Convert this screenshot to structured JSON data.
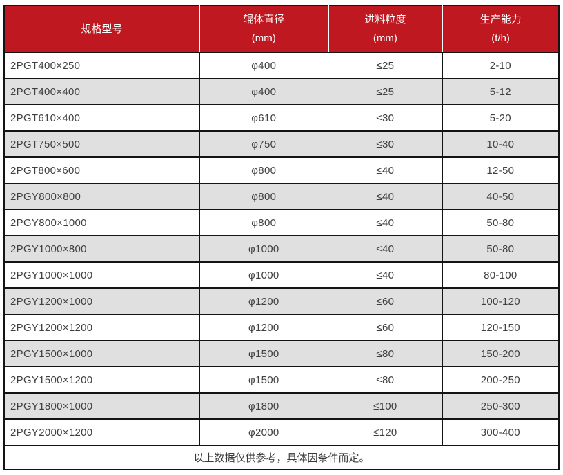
{
  "table": {
    "columns": [
      {
        "label": "规格型号",
        "unit": ""
      },
      {
        "label": "辊体直径",
        "unit": "(mm)"
      },
      {
        "label": "进料粒度",
        "unit": "(mm)"
      },
      {
        "label": "生产能力",
        "unit": "(t/h)"
      }
    ],
    "rows": [
      [
        "2PGT400×250",
        "φ400",
        "≤25",
        "2-10"
      ],
      [
        "2PGT400×400",
        "φ400",
        "≤25",
        "5-12"
      ],
      [
        "2PGT610×400",
        "φ610",
        "≤30",
        "5-20"
      ],
      [
        "2PGT750×500",
        "φ750",
        "≤30",
        "10-40"
      ],
      [
        "2PGT800×600",
        "φ800",
        "≤40",
        "12-50"
      ],
      [
        "2PGY800×800",
        "φ800",
        "≤40",
        "40-50"
      ],
      [
        "2PGY800×1000",
        "φ800",
        "≤40",
        "50-80"
      ],
      [
        "2PGY1000×800",
        "φ1000",
        "≤40",
        "50-80"
      ],
      [
        "2PGY1000×1000",
        "φ1000",
        "≤40",
        "80-100"
      ],
      [
        "2PGY1200×1000",
        "φ1200",
        "≤60",
        "100-120"
      ],
      [
        "2PGY1200×1200",
        "φ1200",
        "≤60",
        "120-150"
      ],
      [
        "2PGY1500×1000",
        "φ1500",
        "≤80",
        "150-200"
      ],
      [
        "2PGY1500×1200",
        "φ1500",
        "≤80",
        "200-250"
      ],
      [
        "2PGY1800×1000",
        "φ1800",
        "≤100",
        "250-300"
      ],
      [
        "2PGY2000×1200",
        "φ2000",
        "≤120",
        "300-400"
      ]
    ],
    "footnote": "以上数据仅供参考，具体因条件而定。"
  },
  "colors": {
    "header_bg": "#c01820",
    "header_text": "#ffffff",
    "row_alt_bg": "#e0e0e0",
    "border": "#141414",
    "body_text": "#404040"
  }
}
